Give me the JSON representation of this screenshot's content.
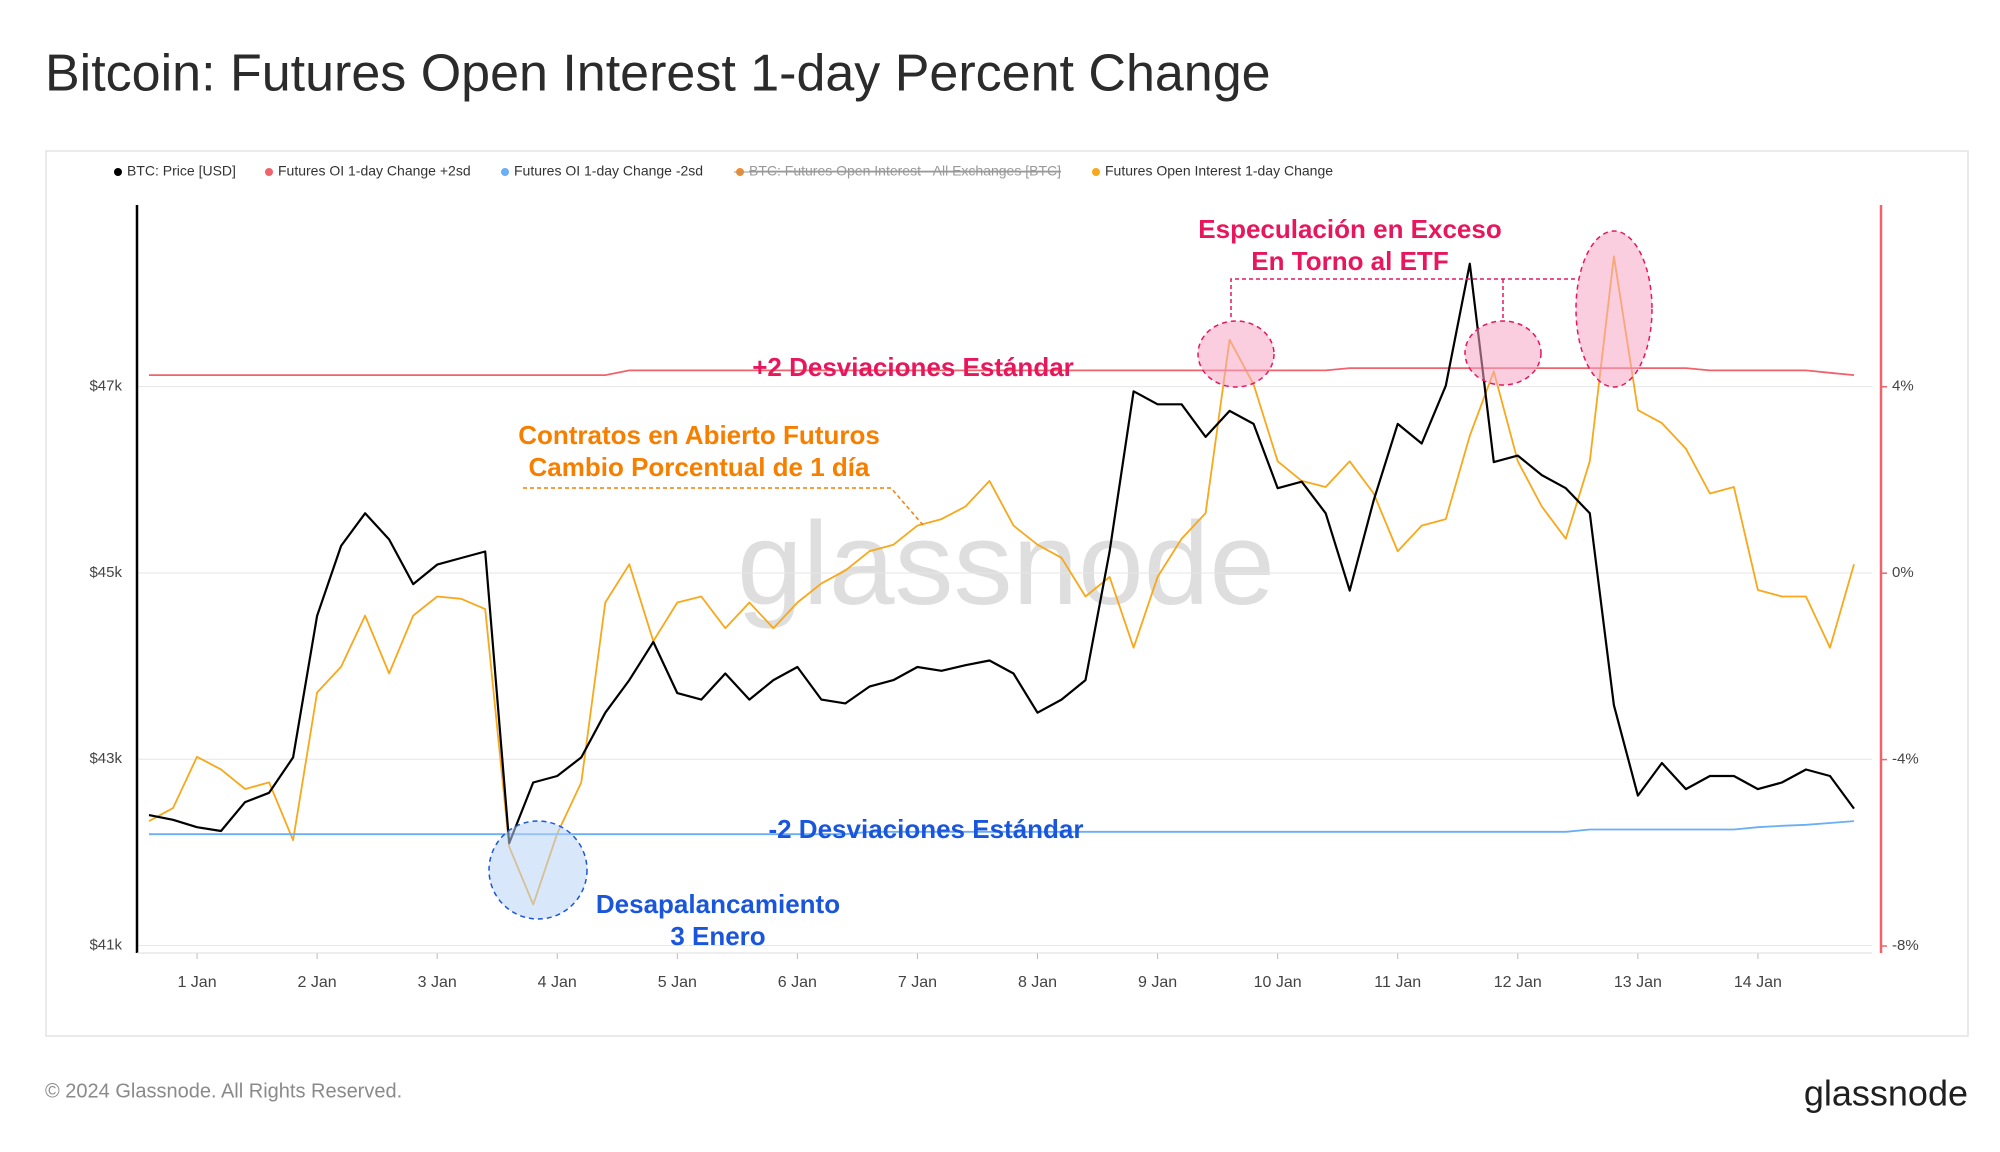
{
  "chart_data": {
    "type": "line",
    "title": "Bitcoin: Futures Open Interest 1-day Percent Change",
    "x": [
      0.6,
      0.8,
      1.0,
      1.2,
      1.4,
      1.6,
      1.8,
      2.0,
      2.2,
      2.4,
      2.6,
      2.8,
      3.0,
      3.2,
      3.4,
      3.6,
      3.8,
      4.0,
      4.2,
      4.4,
      4.6,
      4.8,
      5.0,
      5.2,
      5.4,
      5.6,
      5.8,
      6.0,
      6.2,
      6.4,
      6.6,
      6.8,
      7.0,
      7.2,
      7.4,
      7.6,
      7.8,
      8.0,
      8.2,
      8.4,
      8.6,
      8.8,
      9.0,
      9.2,
      9.4,
      9.6,
      9.8,
      10.0,
      10.2,
      10.4,
      10.6,
      10.8,
      11.0,
      11.2,
      11.4,
      11.6,
      11.8,
      12.0,
      12.2,
      12.4,
      12.6,
      12.8,
      13.0,
      13.2,
      13.4,
      13.6,
      13.8,
      14.0,
      14.2,
      14.4,
      14.6,
      14.8
    ],
    "xlim": [
      0.5,
      14.95
    ],
    "xticks": [
      {
        "value": 1,
        "label": "1 Jan"
      },
      {
        "value": 2,
        "label": "2 Jan"
      },
      {
        "value": 3,
        "label": "3 Jan"
      },
      {
        "value": 4,
        "label": "4 Jan"
      },
      {
        "value": 5,
        "label": "5 Jan"
      },
      {
        "value": 6,
        "label": "6 Jan"
      },
      {
        "value": 7,
        "label": "7 Jan"
      },
      {
        "value": 8,
        "label": "8 Jan"
      },
      {
        "value": 9,
        "label": "9 Jan"
      },
      {
        "value": 10,
        "label": "10 Jan"
      },
      {
        "value": 11,
        "label": "11 Jan"
      },
      {
        "value": 12,
        "label": "12 Jan"
      },
      {
        "value": 13,
        "label": "13 Jan"
      },
      {
        "value": 14,
        "label": "14 Jan"
      }
    ],
    "ylim": [
      40920,
      48950
    ],
    "yticks": [
      {
        "value": 41000,
        "label": "$41k"
      },
      {
        "value": 43000,
        "label": "$43k"
      },
      {
        "value": 45000,
        "label": "$45k"
      },
      {
        "value": 47000,
        "label": "$47k"
      }
    ],
    "y2lim": [
      -8.15,
      7.9
    ],
    "y2ticks": [
      {
        "value": -8,
        "label": "-8%"
      },
      {
        "value": -4,
        "label": "-4%"
      },
      {
        "value": 0,
        "label": "0%"
      },
      {
        "value": 4,
        "label": "4%"
      }
    ],
    "grid": true,
    "series": [
      {
        "name": "BTC: Price [USD]",
        "color": "#000000",
        "axis": "y",
        "values": [
          42400,
          42350,
          42270,
          42230,
          42540,
          42640,
          43020,
          44540,
          45290,
          45640,
          45360,
          44880,
          45090,
          45160,
          45230,
          42100,
          42750,
          42820,
          43020,
          43500,
          43850,
          44260,
          43710,
          43640,
          43920,
          43640,
          43850,
          43990,
          43640,
          43600,
          43780,
          43850,
          43990,
          43950,
          44010,
          44060,
          43920,
          43500,
          43640,
          43850,
          45230,
          46950,
          46810,
          46810,
          46460,
          46740,
          46600,
          45910,
          45980,
          45640,
          44810,
          45780,
          46600,
          46390,
          47010,
          48320,
          46190,
          46260,
          46050,
          45910,
          45640,
          43580,
          42610,
          42960,
          42680,
          42820,
          42820,
          42680,
          42750,
          42890,
          42820,
          42470
        ]
      },
      {
        "name": "Futures OI 1-day Change +2sd",
        "color": "#f0636b",
        "axis": "y2",
        "values": [
          4.25,
          4.25,
          4.25,
          4.25,
          4.25,
          4.25,
          4.25,
          4.25,
          4.25,
          4.25,
          4.25,
          4.25,
          4.25,
          4.25,
          4.25,
          4.25,
          4.25,
          4.25,
          4.25,
          4.25,
          4.35,
          4.35,
          4.35,
          4.35,
          4.35,
          4.35,
          4.35,
          4.35,
          4.35,
          4.35,
          4.35,
          4.35,
          4.35,
          4.35,
          4.35,
          4.35,
          4.35,
          4.35,
          4.35,
          4.35,
          4.35,
          4.35,
          4.35,
          4.35,
          4.35,
          4.35,
          4.35,
          4.35,
          4.35,
          4.35,
          4.4,
          4.4,
          4.4,
          4.4,
          4.4,
          4.4,
          4.4,
          4.4,
          4.4,
          4.4,
          4.4,
          4.4,
          4.4,
          4.4,
          4.4,
          4.35,
          4.35,
          4.35,
          4.35,
          4.35,
          4.3,
          4.25
        ]
      },
      {
        "name": "Futures OI 1-day Change -2sd",
        "color": "#6aaef5",
        "axis": "y2",
        "values": [
          -5.6,
          -5.6,
          -5.6,
          -5.6,
          -5.6,
          -5.6,
          -5.6,
          -5.6,
          -5.6,
          -5.6,
          -5.6,
          -5.6,
          -5.6,
          -5.6,
          -5.6,
          -5.6,
          -5.6,
          -5.6,
          -5.6,
          -5.6,
          -5.6,
          -5.6,
          -5.6,
          -5.6,
          -5.6,
          -5.6,
          -5.6,
          -5.6,
          -5.6,
          -5.6,
          -5.55,
          -5.55,
          -5.55,
          -5.55,
          -5.55,
          -5.55,
          -5.55,
          -5.55,
          -5.55,
          -5.55,
          -5.55,
          -5.55,
          -5.55,
          -5.55,
          -5.55,
          -5.55,
          -5.55,
          -5.55,
          -5.55,
          -5.55,
          -5.55,
          -5.55,
          -5.55,
          -5.55,
          -5.55,
          -5.55,
          -5.55,
          -5.55,
          -5.55,
          -5.55,
          -5.5,
          -5.5,
          -5.5,
          -5.5,
          -5.5,
          -5.5,
          -5.5,
          -5.45,
          -5.42,
          -5.4,
          -5.36,
          -5.32
        ]
      },
      {
        "name": "BTC: Futures Open Interest - All Exchanges [BTC]",
        "color": "#f28c28",
        "hidden": true
      },
      {
        "name": "Futures Open Interest 1-day Change",
        "color": "#f7a81b",
        "axis": "y2",
        "values": [
          -5.32,
          -5.04,
          -3.94,
          -4.21,
          -4.63,
          -4.49,
          -5.73,
          -2.56,
          -2.01,
          -0.91,
          -2.15,
          -0.91,
          -0.5,
          -0.55,
          -0.77,
          -5.87,
          -7.11,
          -5.59,
          -4.49,
          -0.63,
          0.19,
          -1.46,
          -0.63,
          -0.5,
          -1.18,
          -0.63,
          -1.18,
          -0.63,
          -0.22,
          0.06,
          0.47,
          0.61,
          1.02,
          1.16,
          1.43,
          1.98,
          1.02,
          0.61,
          0.33,
          -0.5,
          -0.08,
          -1.6,
          -0.08,
          0.74,
          1.29,
          5.01,
          4.05,
          2.4,
          1.98,
          1.85,
          2.4,
          1.71,
          0.47,
          1.02,
          1.16,
          2.95,
          4.33,
          2.4,
          1.43,
          0.74,
          2.4,
          6.8,
          3.5,
          3.22,
          2.67,
          1.71,
          1.85,
          -0.36,
          -0.5,
          -0.5,
          -1.6,
          0.19
        ]
      }
    ],
    "annotations": [
      {
        "lines": [
          "Especulación en Exceso",
          "En Torno al ETF"
        ],
        "color": "#e8175d"
      },
      {
        "lines": [
          "+2 Desviaciones Estándar"
        ],
        "color": "#e8175d"
      },
      {
        "lines": [
          "Contratos en Abierto Futuros",
          "Cambio Porcentual de 1 día"
        ],
        "color": "#f77f00"
      },
      {
        "lines": [
          "-2 Desviaciones Estándar"
        ],
        "color": "#1a56db"
      },
      {
        "lines": [
          "Desapalancamiento",
          "3 Enero"
        ],
        "color": "#1a56db"
      }
    ],
    "watermark": "glassnode",
    "footer": "© 2024 Glassnode. All Rights Reserved.",
    "logo": "glassnode"
  }
}
